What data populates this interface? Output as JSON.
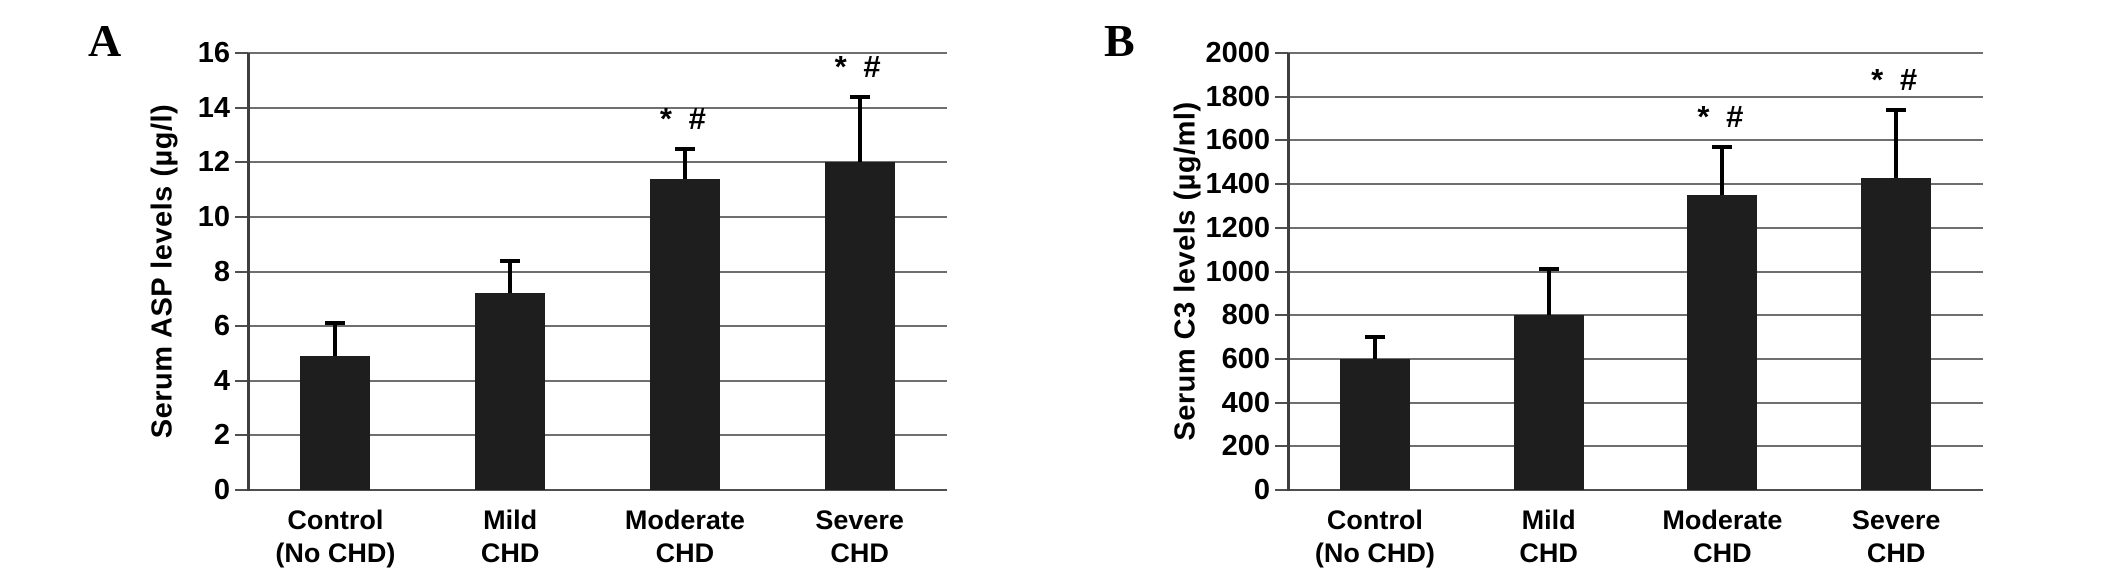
{
  "figure_type": "two-panel scientific bar figure",
  "chart_data": [
    {
      "type": "bar",
      "panel_label": "A",
      "title": "",
      "ylabel": "Serum ASP levels (µg/l)",
      "xlabel": "",
      "ylim": [
        0,
        16
      ],
      "ytick_step": 2,
      "ytick_labels": [
        "0",
        "2",
        "4",
        "6",
        "8",
        "10",
        "12",
        "14",
        "16"
      ],
      "grid": true,
      "legend": "none",
      "categories": [
        "Control (No CHD)",
        "Mild CHD",
        "Moderate CHD",
        "Severe CHD"
      ],
      "category_lines": [
        [
          "Control",
          "(No CHD)"
        ],
        [
          "Mild",
          "CHD"
        ],
        [
          "Moderate",
          "CHD"
        ],
        [
          "Severe",
          "CHD"
        ]
      ],
      "values": [
        4.9,
        7.2,
        11.4,
        12.0
      ],
      "error_plus": [
        1.2,
        1.2,
        1.1,
        2.4
      ],
      "annotations": [
        "",
        "",
        "* #",
        "* #"
      ],
      "bar_color": "#1e1e1e"
    },
    {
      "type": "bar",
      "panel_label": "B",
      "title": "",
      "ylabel": "Serum C3 levels (µg/ml)",
      "xlabel": "",
      "ylim": [
        0,
        2000
      ],
      "ytick_step": 200,
      "ytick_labels": [
        "0",
        "200",
        "400",
        "600",
        "800",
        "1000",
        "1200",
        "1400",
        "1600",
        "1800",
        "2000"
      ],
      "grid": true,
      "legend": "none",
      "categories": [
        "Control (No CHD)",
        "Mild CHD",
        "Moderate CHD",
        "Severe CHD"
      ],
      "category_lines": [
        [
          "Control",
          "(No CHD)"
        ],
        [
          "Mild",
          "CHD"
        ],
        [
          "Moderate",
          "CHD"
        ],
        [
          "Severe",
          "CHD"
        ]
      ],
      "values": [
        600,
        800,
        1350,
        1430
      ],
      "error_plus": [
        100,
        210,
        220,
        310
      ],
      "annotations": [
        "",
        "",
        "* #",
        "* #"
      ],
      "bar_color": "#1e1e1e"
    }
  ]
}
